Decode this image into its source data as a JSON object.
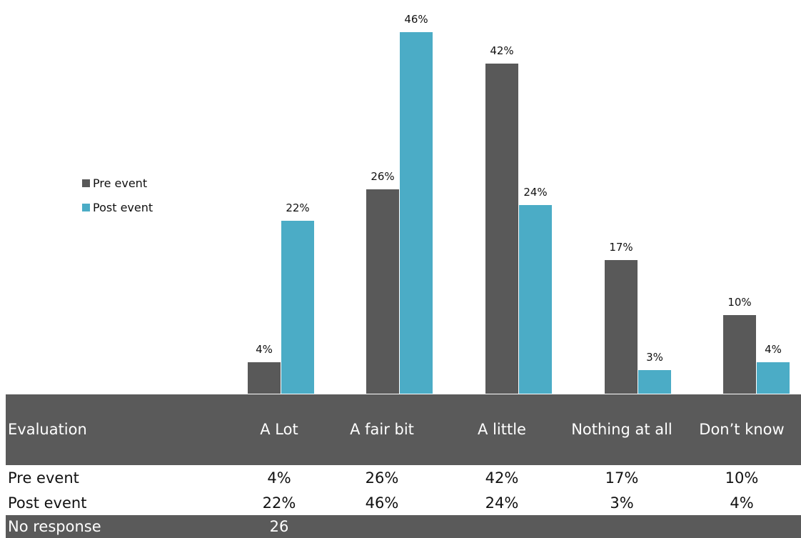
{
  "legend": {
    "pre": {
      "label": "Pre event",
      "color": "#595959"
    },
    "post": {
      "label": "Post event",
      "color": "#4bacc6"
    }
  },
  "chart_data": {
    "type": "bar",
    "categories": [
      "A Lot",
      "A fair bit",
      "A little",
      "Nothing at all",
      "Don’t know"
    ],
    "series": [
      {
        "name": "Pre event",
        "values": [
          4,
          26,
          42,
          17,
          10
        ],
        "color": "#595959"
      },
      {
        "name": "Post event",
        "values": [
          22,
          46,
          24,
          3,
          4
        ],
        "color": "#4bacc6"
      }
    ],
    "data_labels": {
      "pre": [
        "4%",
        "26%",
        "42%",
        "17%",
        "10%"
      ],
      "post": [
        "22%",
        "46%",
        "24%",
        "3%",
        "4%"
      ]
    },
    "ylim": [
      0,
      50
    ],
    "grid": false,
    "legend_position": "left"
  },
  "table": {
    "header": [
      "Evaluation",
      "A Lot",
      "A fair bit",
      "A little",
      "Nothing at all",
      "Don’t know"
    ],
    "rows": [
      [
        "Pre event",
        "4%",
        "26%",
        "42%",
        "17%",
        "10%"
      ],
      [
        "Post event",
        "22%",
        "46%",
        "24%",
        "3%",
        "4%"
      ]
    ],
    "footer": [
      "No response",
      "26"
    ]
  }
}
